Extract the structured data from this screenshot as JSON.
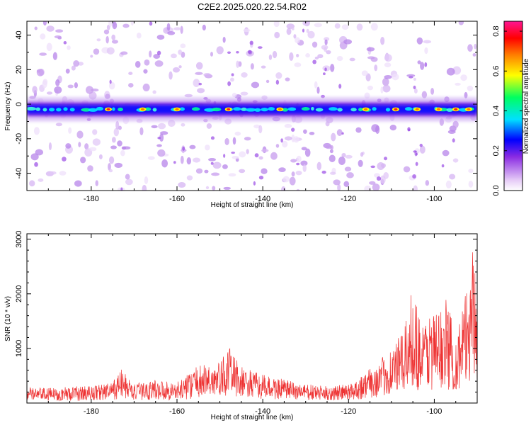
{
  "chart_data": [
    {
      "type": "heatmap",
      "title": "C2E2.2025.020.22.54.R02",
      "xlabel": "Height of straight line (km)",
      "ylabel": "Frequency (Hz)",
      "xlim": [
        -195,
        -90
      ],
      "ylim": [
        -50,
        48
      ],
      "xticks": [
        -180,
        -160,
        -140,
        -120,
        -100
      ],
      "yticks": [
        -40,
        -20,
        0,
        20,
        40
      ],
      "colorbar": {
        "label": "Normalized spectral amplitude",
        "range": [
          0,
          0.85
        ],
        "ticks": [
          0.0,
          0.2,
          0.4,
          0.6,
          0.8
        ],
        "colors": [
          "#e6ccf7",
          "#8a2be2",
          "#0000ff",
          "#00e0ff",
          "#00ff60",
          "#ffff00",
          "#ff7f00",
          "#ff0000",
          "#ff1493"
        ]
      },
      "dominant_frequency_hz": -3,
      "high_amplitude_heights_km": [
        -176,
        -168,
        -160,
        -148,
        -136,
        -116,
        -109,
        -104,
        -99,
        -95,
        -92
      ],
      "grid": false
    },
    {
      "type": "line",
      "xlabel": "Height of straight line (km)",
      "ylabel": "SNR (10 * v/v)",
      "xlim": [
        -195,
        -90
      ],
      "ylim": [
        0,
        3100
      ],
      "xticks": [
        -180,
        -160,
        -140,
        -120,
        -100
      ],
      "yticks": [
        1000,
        2000,
        3000
      ],
      "color": "#ee3333",
      "grid": false,
      "x": [
        -195,
        -190,
        -185,
        -180,
        -175,
        -173,
        -170,
        -165,
        -160,
        -155,
        -150,
        -148,
        -145,
        -140,
        -135,
        -130,
        -125,
        -120,
        -117,
        -113,
        -110,
        -107,
        -105,
        -103,
        -101,
        -99,
        -97,
        -95,
        -93,
        -92,
        -91,
        -90
      ],
      "y": [
        250,
        240,
        260,
        280,
        330,
        550,
        300,
        380,
        330,
        600,
        650,
        900,
        580,
        450,
        380,
        300,
        270,
        300,
        450,
        650,
        900,
        1150,
        1900,
        1250,
        1500,
        1450,
        1700,
        1100,
        1650,
        2000,
        3100,
        1250
      ]
    }
  ]
}
